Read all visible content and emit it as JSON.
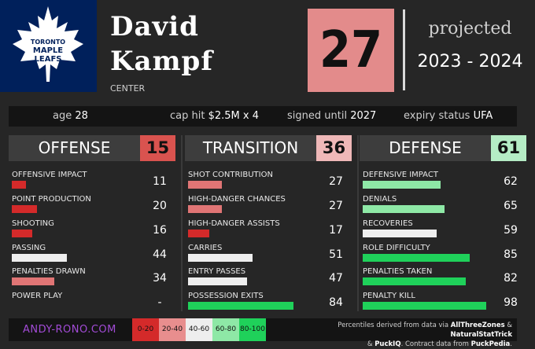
{
  "player": {
    "first_name": "David",
    "last_name": "Kampf",
    "position": "CENTER",
    "number": "27",
    "team_logo": "maple-leaf-logo",
    "logo_text": [
      "TORONTO",
      "MAPLE",
      "LEAFS"
    ]
  },
  "projection": {
    "label": "projected",
    "season": "2023 - 2024"
  },
  "info": {
    "age_label": "age",
    "age": "28",
    "cap_label": "cap hit",
    "cap": "$2.5M x 4",
    "signed_label": "signed until",
    "signed": "2027",
    "expiry_label": "expiry status",
    "expiry": "UFA"
  },
  "panels": [
    {
      "title": "OFFENSE",
      "score": "15",
      "score_color": "#d9534f",
      "stats": [
        {
          "label": "OFFENSIVE IMPACT",
          "value": "11",
          "pct": 11,
          "color": "#d42a2a"
        },
        {
          "label": "POINT PRODUCTION",
          "value": "20",
          "pct": 20,
          "color": "#d42a2a"
        },
        {
          "label": "SHOOTING",
          "value": "16",
          "pct": 16,
          "color": "#d42a2a"
        },
        {
          "label": "PASSING",
          "value": "44",
          "pct": 44,
          "color": "#eeeeee"
        },
        {
          "label": "PENALTIES DRAWN",
          "value": "34",
          "pct": 34,
          "color": "#e07575"
        },
        {
          "label": "POWER PLAY",
          "value": "-",
          "pct": 0,
          "color": "#262626"
        }
      ]
    },
    {
      "title": "TRANSITION",
      "score": "36",
      "score_color": "#efb8b8",
      "stats": [
        {
          "label": "SHOT CONTRIBUTION",
          "value": "27",
          "pct": 27,
          "color": "#e07575"
        },
        {
          "label": "HIGH-DANGER CHANCES",
          "value": "27",
          "pct": 27,
          "color": "#e07575"
        },
        {
          "label": "HIGH-DANGER ASSISTS",
          "value": "17",
          "pct": 17,
          "color": "#d42a2a"
        },
        {
          "label": "CARRIES",
          "value": "51",
          "pct": 51,
          "color": "#eeeeee"
        },
        {
          "label": "ENTRY PASSES",
          "value": "47",
          "pct": 47,
          "color": "#eeeeee"
        },
        {
          "label": "POSSESSION EXITS",
          "value": "84",
          "pct": 84,
          "color": "#1fd15a"
        }
      ]
    },
    {
      "title": "DEFENSE",
      "score": "61",
      "score_color": "#b5ecc5",
      "stats": [
        {
          "label": "DEFENSIVE IMPACT",
          "value": "62",
          "pct": 62,
          "color": "#8ee8a6"
        },
        {
          "label": "DENIALS",
          "value": "65",
          "pct": 65,
          "color": "#8ee8a6"
        },
        {
          "label": "RECOVERIES",
          "value": "59",
          "pct": 59,
          "color": "#eeeeee"
        },
        {
          "label": "ROLE DIFFICULTY",
          "value": "85",
          "pct": 85,
          "color": "#1fd15a"
        },
        {
          "label": "PENALTIES TAKEN",
          "value": "82",
          "pct": 82,
          "color": "#1fd15a"
        },
        {
          "label": "PENALTY KILL",
          "value": "98",
          "pct": 98,
          "color": "#1fd15a"
        }
      ]
    }
  ],
  "footer": {
    "site": "ANDY-RONO.COM",
    "legend": [
      {
        "label": "0-20",
        "color": "#d42a2a"
      },
      {
        "label": "20-40",
        "color": "#e88e8e"
      },
      {
        "label": "40-60",
        "color": "#eeeeee"
      },
      {
        "label": "60-80",
        "color": "#8ee8a6"
      },
      {
        "label": "80-100",
        "color": "#1fd15a"
      }
    ],
    "credits_line1_prefix": "Percentiles derived from data via",
    "credits_src1": "AllThreeZones",
    "credits_amp": "&",
    "credits_src2": "NaturalStatTrick",
    "credits_src3": "PuckIQ",
    "credits_line2_mid": ". Contract data from",
    "credits_src4": "PuckPedia",
    "credits_end": "."
  }
}
